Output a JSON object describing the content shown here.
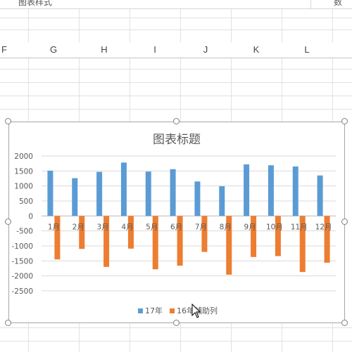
{
  "ribbon": {
    "left_label": "图表样式",
    "right_label": "数"
  },
  "columns": [
    "F",
    "G",
    "H",
    "I",
    "J",
    "K",
    "L"
  ],
  "chart_data": {
    "type": "bar",
    "title": "图表标题",
    "categories": [
      "1月",
      "2月",
      "3月",
      "4月",
      "5月",
      "6月",
      "7月",
      "8月",
      "9月",
      "10月",
      "11月",
      "12月"
    ],
    "series": [
      {
        "name": "17年",
        "color": "#5b9bd5",
        "values": [
          1510,
          1260,
          1470,
          1780,
          1480,
          1560,
          1150,
          990,
          1720,
          1690,
          1650,
          1350
        ]
      },
      {
        "name": "16年辅助列",
        "color": "#ed7d31",
        "values": [
          -1450,
          -1100,
          -1700,
          -1090,
          -1780,
          -1660,
          -1200,
          -1960,
          -1370,
          -1340,
          -1870,
          -1560
        ]
      }
    ],
    "ylim": [
      -2500,
      2000
    ],
    "yticks": [
      "2000",
      "1500",
      "1000",
      "500",
      "0",
      "-500",
      "-1000",
      "-1500",
      "-2000",
      "-2500"
    ],
    "grid": true,
    "legend": "bottom"
  },
  "icons": {
    "cursor": "mouse-pointer-icon"
  }
}
